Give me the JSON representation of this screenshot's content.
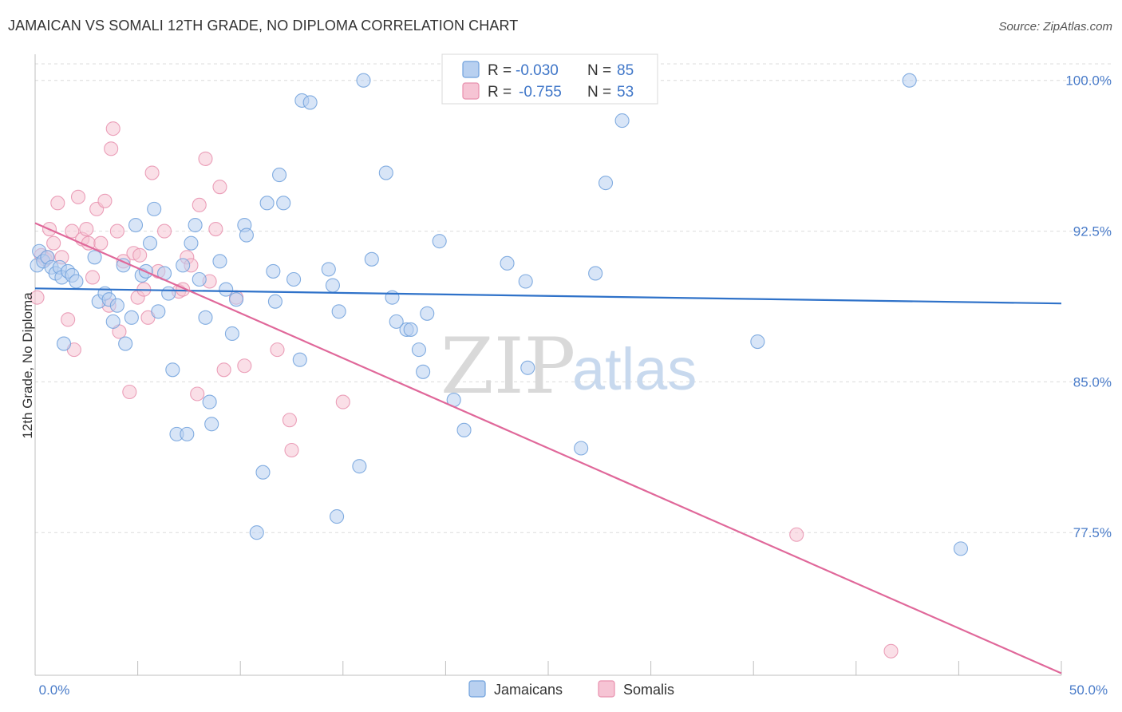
{
  "title": "JAMAICAN VS SOMALI 12TH GRADE, NO DIPLOMA CORRELATION CHART",
  "source": "Source: ZipAtlas.com",
  "colors": {
    "blue": "#6fa0dc",
    "blue_fill": "#b8d0f0",
    "blue_line": "#2f72c9",
    "pink": "#e890ae",
    "pink_fill": "#f6c4d4",
    "pink_line": "#e0689a",
    "grid": "#dcdcdc",
    "tick_text": "#4a7cc9"
  },
  "legend": {
    "r_label": "R =",
    "n_label": "N =",
    "blue_r": "-0.030",
    "blue_n": "85",
    "pink_r": "-0.755",
    "pink_n": "53"
  },
  "watermark": {
    "zip": "ZIP",
    "atlas": "atlas"
  },
  "chart_data": {
    "type": "scatter",
    "title": "JAMAICAN VS SOMALI 12TH GRADE, NO DIPLOMA CORRELATION CHART",
    "xlabel": "",
    "ylabel": "12th Grade, No Diploma",
    "xlim": [
      0,
      50
    ],
    "ylim": [
      70.4,
      101.3
    ],
    "x_tick_labels": [
      "0.0%",
      "50.0%"
    ],
    "y_ticks": [
      77.5,
      85.0,
      92.5,
      100.0
    ],
    "y_tick_labels": [
      "77.5%",
      "85.0%",
      "92.5%",
      "100.0%"
    ],
    "grid": true,
    "legend_position": "bottom-center",
    "series": [
      {
        "name": "Jamaicans",
        "r": -0.03,
        "n": 85,
        "trend": {
          "x": [
            0,
            50
          ],
          "y": [
            89.65,
            88.9
          ]
        },
        "points": [
          [
            0.1,
            90.8
          ],
          [
            0.2,
            91.5
          ],
          [
            0.4,
            91.0
          ],
          [
            0.6,
            91.2
          ],
          [
            0.8,
            90.7
          ],
          [
            1.0,
            90.4
          ],
          [
            1.2,
            90.7
          ],
          [
            1.3,
            90.2
          ],
          [
            1.4,
            86.9
          ],
          [
            1.6,
            90.5
          ],
          [
            1.8,
            90.3
          ],
          [
            2.0,
            90.0
          ],
          [
            2.9,
            91.2
          ],
          [
            3.1,
            89.0
          ],
          [
            3.4,
            89.4
          ],
          [
            3.6,
            89.1
          ],
          [
            3.8,
            88.0
          ],
          [
            4.0,
            88.8
          ],
          [
            4.3,
            90.8
          ],
          [
            4.4,
            86.9
          ],
          [
            4.7,
            88.2
          ],
          [
            4.9,
            92.8
          ],
          [
            5.2,
            90.3
          ],
          [
            5.4,
            90.5
          ],
          [
            5.6,
            91.9
          ],
          [
            5.8,
            93.6
          ],
          [
            6.0,
            88.5
          ],
          [
            6.3,
            90.4
          ],
          [
            6.5,
            89.4
          ],
          [
            6.7,
            85.6
          ],
          [
            6.9,
            82.4
          ],
          [
            7.2,
            90.8
          ],
          [
            7.4,
            82.4
          ],
          [
            7.6,
            91.9
          ],
          [
            7.8,
            92.8
          ],
          [
            8.0,
            90.1
          ],
          [
            8.3,
            88.2
          ],
          [
            8.5,
            84.0
          ],
          [
            8.6,
            82.9
          ],
          [
            9.0,
            91.0
          ],
          [
            9.3,
            89.6
          ],
          [
            9.6,
            87.4
          ],
          [
            9.8,
            89.1
          ],
          [
            10.2,
            92.8
          ],
          [
            10.3,
            92.3
          ],
          [
            10.8,
            77.5
          ],
          [
            11.1,
            80.5
          ],
          [
            11.3,
            93.9
          ],
          [
            11.6,
            90.5
          ],
          [
            11.7,
            89.0
          ],
          [
            11.9,
            95.3
          ],
          [
            12.1,
            93.9
          ],
          [
            12.6,
            90.1
          ],
          [
            12.9,
            86.1
          ],
          [
            13.0,
            99.0
          ],
          [
            13.4,
            98.9
          ],
          [
            14.3,
            90.6
          ],
          [
            14.5,
            89.8
          ],
          [
            14.7,
            78.3
          ],
          [
            14.8,
            88.5
          ],
          [
            15.8,
            80.8
          ],
          [
            16.0,
            100.0
          ],
          [
            16.4,
            91.1
          ],
          [
            17.1,
            95.4
          ],
          [
            17.4,
            89.2
          ],
          [
            17.6,
            88.0
          ],
          [
            18.1,
            87.6
          ],
          [
            18.3,
            87.6
          ],
          [
            18.7,
            86.6
          ],
          [
            18.9,
            85.5
          ],
          [
            19.1,
            88.4
          ],
          [
            19.7,
            92.0
          ],
          [
            20.4,
            84.1
          ],
          [
            20.9,
            82.6
          ],
          [
            23.0,
            90.9
          ],
          [
            23.9,
            90.0
          ],
          [
            24.0,
            85.7
          ],
          [
            26.6,
            81.7
          ],
          [
            27.3,
            90.4
          ],
          [
            27.6,
            100.0
          ],
          [
            27.8,
            94.9
          ],
          [
            28.6,
            98.0
          ],
          [
            35.2,
            87.0
          ],
          [
            42.6,
            100.0
          ],
          [
            45.1,
            76.7
          ]
        ]
      },
      {
        "name": "Somalis",
        "r": -0.755,
        "n": 53,
        "trend": {
          "x": [
            0,
            50
          ],
          "y": [
            92.9,
            70.5
          ]
        },
        "points": [
          [
            0.1,
            89.2
          ],
          [
            0.3,
            91.3
          ],
          [
            0.5,
            91.1
          ],
          [
            0.7,
            92.6
          ],
          [
            0.9,
            91.9
          ],
          [
            1.1,
            93.9
          ],
          [
            1.3,
            91.2
          ],
          [
            1.6,
            88.1
          ],
          [
            1.8,
            92.5
          ],
          [
            1.9,
            86.6
          ],
          [
            2.1,
            94.2
          ],
          [
            2.3,
            92.1
          ],
          [
            2.5,
            92.6
          ],
          [
            2.6,
            91.9
          ],
          [
            2.8,
            90.2
          ],
          [
            3.0,
            93.6
          ],
          [
            3.2,
            91.9
          ],
          [
            3.4,
            94.0
          ],
          [
            3.6,
            88.8
          ],
          [
            3.7,
            96.6
          ],
          [
            3.8,
            97.6
          ],
          [
            4.0,
            92.5
          ],
          [
            4.1,
            87.5
          ],
          [
            4.3,
            91.0
          ],
          [
            4.6,
            84.5
          ],
          [
            4.8,
            91.4
          ],
          [
            5.0,
            89.2
          ],
          [
            5.1,
            91.3
          ],
          [
            5.3,
            89.6
          ],
          [
            5.5,
            88.2
          ],
          [
            5.7,
            95.4
          ],
          [
            6.0,
            90.5
          ],
          [
            6.3,
            92.5
          ],
          [
            7.0,
            89.5
          ],
          [
            7.2,
            89.6
          ],
          [
            7.4,
            91.2
          ],
          [
            7.6,
            90.8
          ],
          [
            7.9,
            84.4
          ],
          [
            8.0,
            93.8
          ],
          [
            8.3,
            96.1
          ],
          [
            8.5,
            90.0
          ],
          [
            8.8,
            92.6
          ],
          [
            9.0,
            94.7
          ],
          [
            9.2,
            85.6
          ],
          [
            9.8,
            89.2
          ],
          [
            10.2,
            85.8
          ],
          [
            11.8,
            86.6
          ],
          [
            12.4,
            83.1
          ],
          [
            12.5,
            81.6
          ],
          [
            15.0,
            84.0
          ],
          [
            37.1,
            77.4
          ],
          [
            41.7,
            71.6
          ],
          [
            0.6,
            91.2
          ]
        ]
      }
    ]
  }
}
